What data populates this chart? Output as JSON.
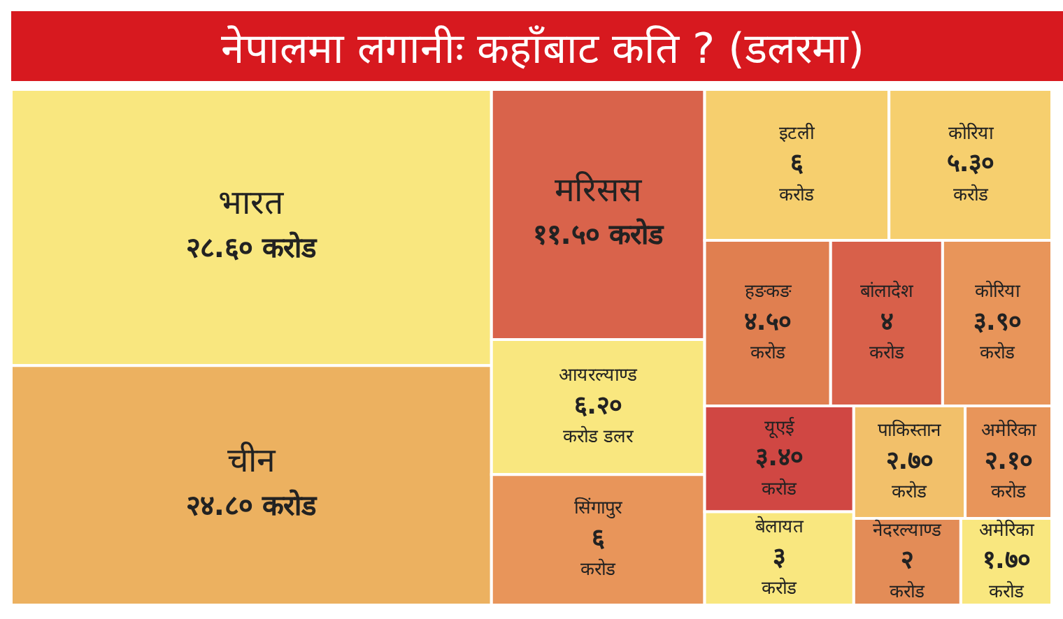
{
  "chart_data": {
    "type": "other",
    "title": "नेपालमा लगानीः कहाँबाट कति ? (डलरमा)",
    "categories": [
      "भारत",
      "चीन",
      "मरिसस",
      "आयरल्याण्ड",
      "सिंगापुर",
      "इटली",
      "कोरिया",
      "हङकङ",
      "बांलादेश",
      "कोरिया",
      "यूएई",
      "बेलायत",
      "पाकिस्तान",
      "अमेरिका",
      "नेदरल्याण्ड",
      "अमेरिका"
    ],
    "values": [
      28.6,
      24.8,
      11.5,
      6.2,
      6,
      6,
      5.3,
      4.5,
      4,
      3.9,
      3.4,
      3,
      2.7,
      2.1,
      2,
      1.7
    ],
    "value_labels": [
      "२८.६० करोड",
      "२४.८० करोड",
      "११.५० करोड",
      "६.२० करोड डलर",
      "६ करोड",
      "६ करोड",
      "५.३० करोड",
      "४.५० करोड",
      "४ करोड",
      "३.९० करोड",
      "३.४० करोड",
      "३ करोड",
      "२.७० करोड",
      "२.१० करोड",
      "२ करोड",
      "१.७० करोड"
    ],
    "colors": [
      "#f9e77f",
      "#ecb160",
      "#d9634b",
      "#f9e77f",
      "#e8955a",
      "#f6cf6e",
      "#f6cf6e",
      "#e07f50",
      "#d8604a",
      "#e8955a",
      "#d04743",
      "#f9e77f",
      "#f2c06a",
      "#e8955a",
      "#e38c57",
      "#f9e77f"
    ]
  }
}
